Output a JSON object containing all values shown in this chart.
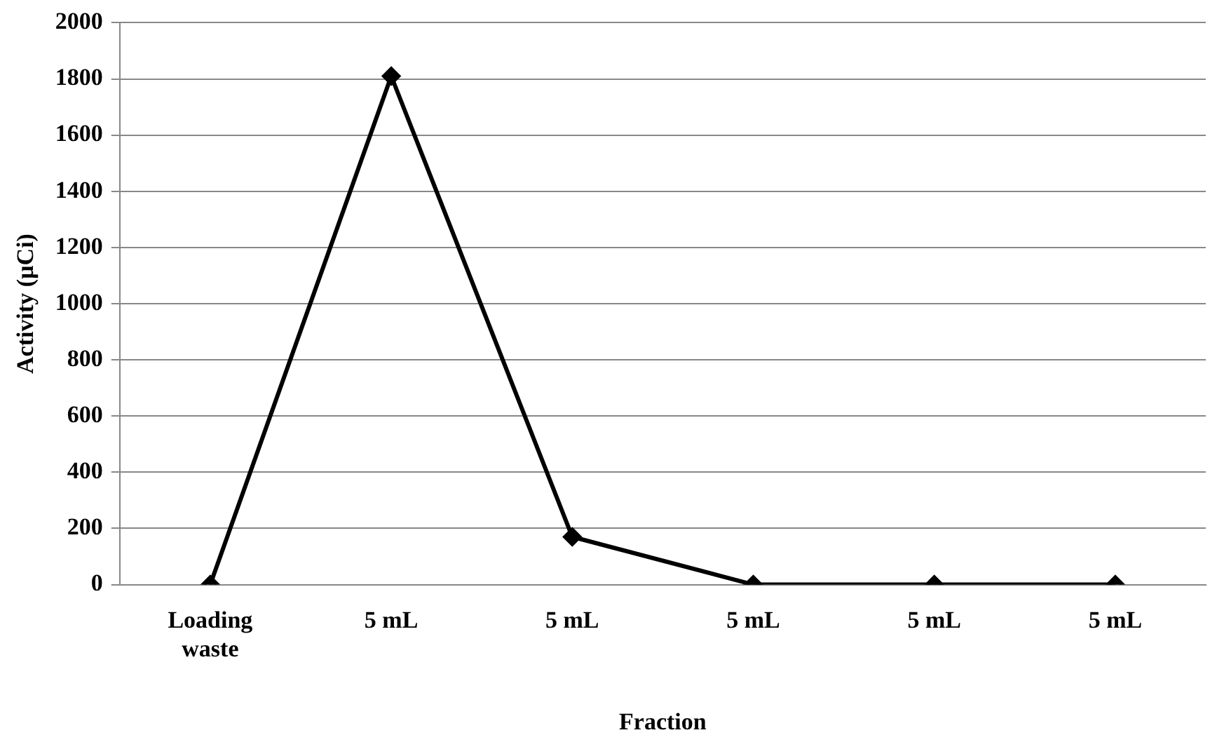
{
  "chart_data": {
    "type": "line",
    "xlabel": "Fraction",
    "ylabel": "Activity (µCi)",
    "categories": [
      "Loading waste",
      "5 mL",
      "5 mL",
      "5 mL",
      "5 mL",
      "5 mL"
    ],
    "series": [
      {
        "color": "#000000",
        "values": [
          0,
          1810,
          170,
          0,
          0,
          0
        ]
      }
    ],
    "ylim": [
      0,
      2000
    ],
    "yticks": [
      0,
      200,
      400,
      600,
      800,
      1000,
      1200,
      1400,
      1600,
      1800,
      2000
    ],
    "grid": "y",
    "legend": false,
    "marker": "diamond",
    "line_style": "solid"
  }
}
